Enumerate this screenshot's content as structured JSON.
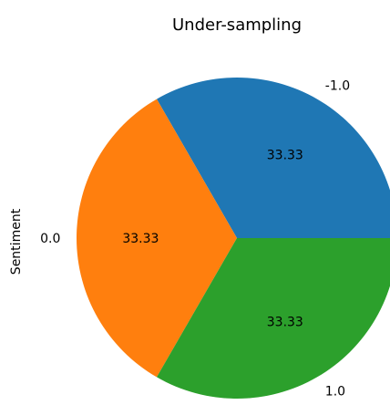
{
  "chart_data": {
    "type": "pie",
    "title": "Under-sampling",
    "ylabel": "Sentiment",
    "labels": [
      "-1.0",
      "0.0",
      "1.0"
    ],
    "values": [
      33.33,
      33.33,
      33.33
    ],
    "value_labels": [
      "33.33",
      "33.33",
      "33.33"
    ],
    "colors": [
      "#1f77b4",
      "#ff7f0e",
      "#2ca02c"
    ],
    "start_angle_deg": 0,
    "direction": "counterclockwise"
  }
}
